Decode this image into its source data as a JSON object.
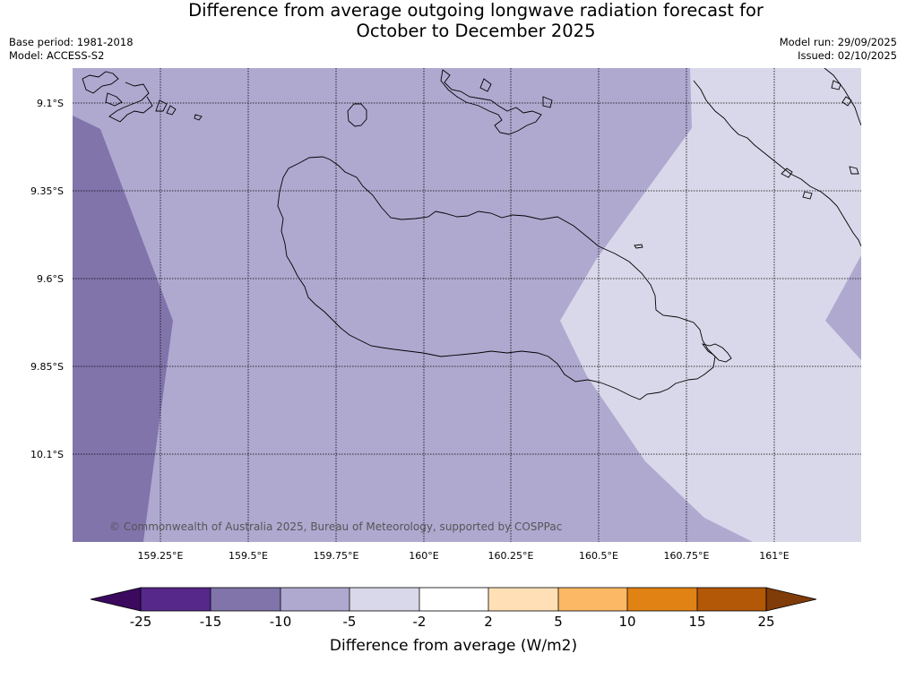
{
  "header": {
    "title_line1": "Difference from average outgoing longwave radiation forecast for",
    "title_line2": "October to December 2025",
    "base_period": "Base period: 1981-2018",
    "model": "Model: ACCESS-S2",
    "model_run": "Model run: 29/09/2025",
    "issued": "Issued: 02/10/2025"
  },
  "map": {
    "latitude_labels": [
      "9.1°S",
      "9.35°S",
      "9.6°S",
      "9.85°S",
      "10.1°S"
    ],
    "longitude_labels": [
      "159.25°E",
      "159.5°E",
      "159.75°E",
      "160°E",
      "160.25°E",
      "160.5°E",
      "160.75°E",
      "161°E"
    ],
    "credit": "© Commonwealth of Australia 2025, Bureau of Meteorology, supported by COSPPac",
    "colors": {
      "band_-15_-10": "#8074ab",
      "band_-10_-5": "#afa9d0",
      "band_-5_-2": "#d9d8ea",
      "coastline": "#000000"
    }
  },
  "colorbar": {
    "label": "Difference from average (W/m2)",
    "ticks": [
      "-25",
      "-15",
      "-10",
      "-5",
      "-2",
      "2",
      "5",
      "10",
      "15",
      "25"
    ],
    "colors": [
      "#3b0a5e",
      "#55288a",
      "#8074ab",
      "#afa9d0",
      "#d9d8ea",
      "#ffffff",
      "#ffe0b6",
      "#fdb865",
      "#e08214",
      "#b35806",
      "#7f3b08"
    ]
  }
}
